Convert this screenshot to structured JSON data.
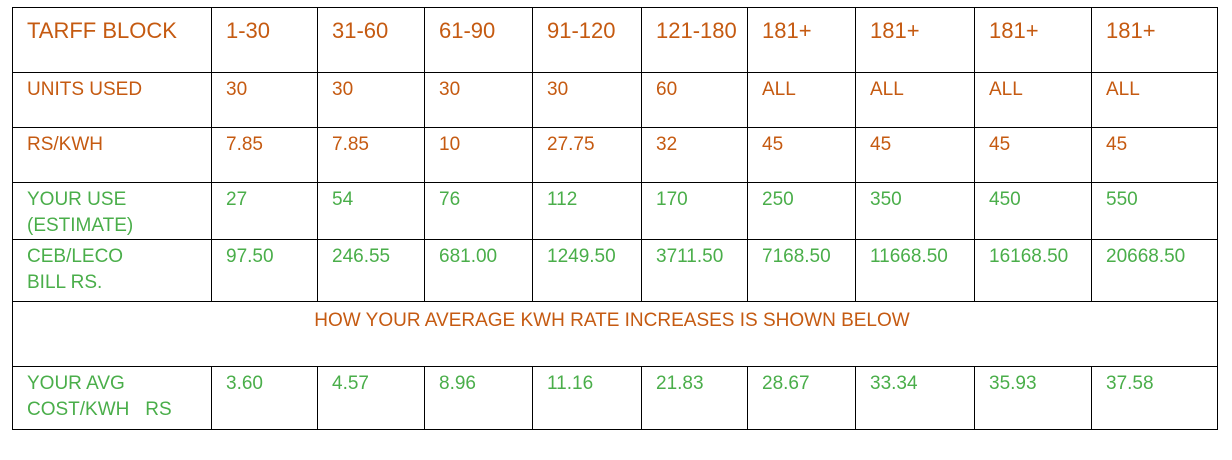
{
  "rows": [
    {
      "label": "TARFF BLOCK",
      "color": "#C55A11",
      "cells": [
        "1-30",
        "31-60",
        "61-90",
        "91-120",
        "121-180",
        "181+",
        "181+",
        "181+",
        "181+"
      ]
    },
    {
      "label": "UNITS USED",
      "color": "#C55A11",
      "cells": [
        "30",
        "30",
        "30",
        "30",
        "60",
        "ALL",
        "ALL",
        "ALL",
        "ALL"
      ]
    },
    {
      "label": "RS/KWH",
      "color": "#C55A11",
      "cells": [
        "7.85",
        "7.85",
        "10",
        "27.75",
        "32",
        "45",
        "45",
        "45",
        "45"
      ]
    },
    {
      "label_lines": [
        "YOUR USE",
        "(ESTIMATE)"
      ],
      "color": "#4AAE4A",
      "cells": [
        "27",
        "54",
        "76",
        "112",
        "170",
        "250",
        "350",
        "450",
        "550"
      ]
    },
    {
      "label_lines": [
        "CEB/LECO",
        "BILL RS."
      ],
      "color": "#4AAE4A",
      "cells": [
        "97.50",
        "246.55",
        "681.00",
        "1249.50",
        "3711.50",
        "7168.50",
        "11668.50",
        "16168.50",
        "20668.50"
      ]
    }
  ],
  "banner": "HOW YOUR AVERAGE KWH RATE INCREASES IS SHOWN BELOW",
  "avg_row": {
    "label_lines": [
      "YOUR AVG",
      "COST/KWH   RS"
    ],
    "color": "#4AAE4A",
    "cells": [
      "3.60",
      "4.57",
      "8.96",
      "11.16",
      "21.83",
      "28.67",
      "33.34",
      "35.93",
      "37.58"
    ]
  }
}
